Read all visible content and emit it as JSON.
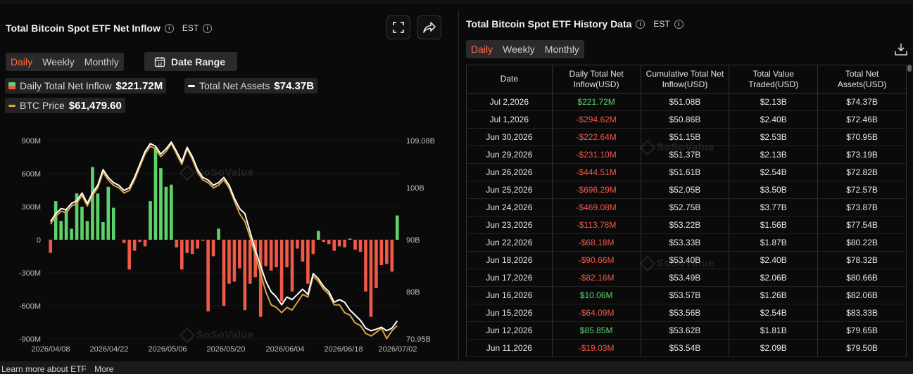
{
  "left": {
    "title": "Total Bitcoin Spot ETF Net Inflow",
    "tz": "EST",
    "tabs": [
      "Daily",
      "Weekly",
      "Monthly"
    ],
    "active_tab": "Daily",
    "date_range_label": "Date Range",
    "legend": {
      "daily_label": "Daily Total Net Inflow",
      "daily_value": "$221.72M",
      "assets_label": "Total Net Assets",
      "assets_value": "$74.37B",
      "btc_label": "BTC Price",
      "btc_value": "$61,479.60"
    },
    "watermark": "SoSoValue"
  },
  "footer": {
    "learn": "Learn more about ETF",
    "more": "More"
  },
  "right": {
    "title": "Total Bitcoin Spot ETF History Data",
    "tz": "EST",
    "tabs": [
      "Daily",
      "Weekly",
      "Monthly"
    ],
    "active_tab": "Daily",
    "columns": [
      "Date",
      "Daily Total Net Inflow(USD)",
      "Cumulative Total Net Inflow(USD)",
      "Total Value Traded(USD)",
      "Total Net Assets(USD)"
    ],
    "rows": [
      [
        "Jul 2,2026",
        "$221.72M",
        "$51.08B",
        "$2.13B",
        "$74.37B"
      ],
      [
        "Jul 1,2026",
        "-$294.62M",
        "$50.86B",
        "$2.40B",
        "$72.46B"
      ],
      [
        "Jun 30,2026",
        "-$222.64M",
        "$51.15B",
        "$2.53B",
        "$70.95B"
      ],
      [
        "Jun 29,2026",
        "-$231.10M",
        "$51.37B",
        "$2.13B",
        "$73.19B"
      ],
      [
        "Jun 26,2026",
        "-$444.51M",
        "$51.61B",
        "$2.54B",
        "$72.82B"
      ],
      [
        "Jun 25,2026",
        "-$696.29M",
        "$52.05B",
        "$3.50B",
        "$72.57B"
      ],
      [
        "Jun 24,2026",
        "-$469.08M",
        "$52.75B",
        "$3.77B",
        "$73.87B"
      ],
      [
        "Jun 23,2026",
        "-$113.78M",
        "$53.22B",
        "$1.56B",
        "$77.54B"
      ],
      [
        "Jun 22,2026",
        "-$68.18M",
        "$53.33B",
        "$1.87B",
        "$80.22B"
      ],
      [
        "Jun 18,2026",
        "-$90.66M",
        "$53.40B",
        "$2.40B",
        "$78.32B"
      ],
      [
        "Jun 17,2026",
        "-$82.16M",
        "$53.49B",
        "$2.06B",
        "$80.66B"
      ],
      [
        "Jun 16,2026",
        "$10.06M",
        "$53.57B",
        "$1.26B",
        "$82.06B"
      ],
      [
        "Jun 15,2026",
        "-$64.09M",
        "$53.56B",
        "$2.54B",
        "$83.33B"
      ],
      [
        "Jun 12,2026",
        "$85.85M",
        "$53.62B",
        "$1.81B",
        "$79.65B"
      ],
      [
        "Jun 11,2026",
        "-$19.03M",
        "$53.54B",
        "$2.09B",
        "$79.50B"
      ]
    ]
  },
  "colors": {
    "accent": "#ff6a3d",
    "positive": "#5ed36b",
    "negative": "#f05848",
    "assets_line": "#ffffff",
    "btc_line": "#d9a441"
  },
  "chart_data": {
    "type": "bar",
    "y_left_ticks": [
      "900M",
      "600M",
      "300M",
      "0",
      "-300M",
      "-600M",
      "-900M"
    ],
    "y_left_range": [
      -900,
      900
    ],
    "y_right_ticks": [
      "109.08B",
      "100B",
      "90B",
      "80B",
      "70.95B"
    ],
    "y_right_range": [
      70.95,
      109.08
    ],
    "x_ticks": [
      "2026/04/08",
      "2026/04/22",
      "2026/05/06",
      "2026/05/20",
      "2026/06/04",
      "2026/06/18",
      "2026/07/02"
    ],
    "series": [
      {
        "name": "Daily Total Net Inflow",
        "unit": "M",
        "values": [
          -120,
          350,
          170,
          270,
          100,
          420,
          300,
          170,
          660,
          420,
          160,
          480,
          290,
          0,
          -30,
          -270,
          -100,
          -20,
          -60,
          350,
          840,
          650,
          480,
          500,
          -70,
          -270,
          -120,
          -130,
          -80,
          -10,
          -650,
          -150,
          100,
          -600,
          -400,
          -380,
          -260,
          -640,
          -400,
          -340,
          -700,
          -240,
          -280,
          -250,
          -560,
          -250,
          -470,
          -80,
          -200,
          -400,
          -130,
          80,
          -20,
          -40,
          -100,
          -60,
          -70,
          10,
          -90,
          -110,
          -470,
          -700,
          -440,
          -230,
          -220,
          -290,
          220
        ]
      },
      {
        "name": "Total Net Assets",
        "unit": "B",
        "values": [
          93.5,
          95.0,
          96.0,
          95.8,
          97.0,
          97.5,
          99.0,
          97.0,
          99.0,
          100.5,
          103.5,
          102.0,
          101.0,
          100.5,
          99.5,
          100.0,
          102.0,
          104.5,
          107.0,
          108.5,
          108.0,
          106.5,
          107.5,
          108.8,
          107.0,
          105.0,
          107.8,
          106.0,
          103.5,
          102.0,
          101.5,
          100.5,
          101.0,
          102.0,
          100.5,
          98.0,
          96.0,
          95.0,
          91.5,
          88.0,
          85.0,
          82.0,
          80.0,
          79.0,
          77.5,
          79.0,
          78.5,
          79.5,
          80.5,
          79.5,
          83.5,
          82.5,
          81.0,
          80.0,
          78.0,
          78.5,
          78.0,
          76.5,
          75.5,
          74.5,
          73.0,
          72.5,
          72.8,
          73.2,
          72.5,
          73.0,
          74.4
        ]
      },
      {
        "name": "BTC Price",
        "unit": "B",
        "values": [
          93.0,
          94.5,
          95.5,
          95.2,
          96.5,
          97.0,
          98.5,
          96.5,
          98.5,
          100.0,
          103.0,
          101.5,
          100.5,
          100.0,
          99.0,
          99.5,
          101.5,
          104.0,
          106.5,
          108.0,
          107.5,
          106.0,
          107.0,
          108.5,
          106.5,
          104.5,
          107.5,
          105.5,
          103.0,
          101.5,
          101.0,
          100.0,
          100.5,
          101.5,
          100.0,
          97.5,
          95.0,
          93.5,
          90.5,
          87.0,
          83.5,
          80.0,
          77.5,
          77.0,
          76.0,
          77.0,
          76.5,
          78.0,
          79.5,
          79.0,
          83.0,
          82.0,
          80.5,
          79.5,
          77.5,
          77.5,
          76.0,
          75.5,
          74.0,
          73.5,
          72.0,
          71.5,
          72.2,
          73.0,
          71.0,
          72.5,
          73.5
        ]
      }
    ]
  }
}
